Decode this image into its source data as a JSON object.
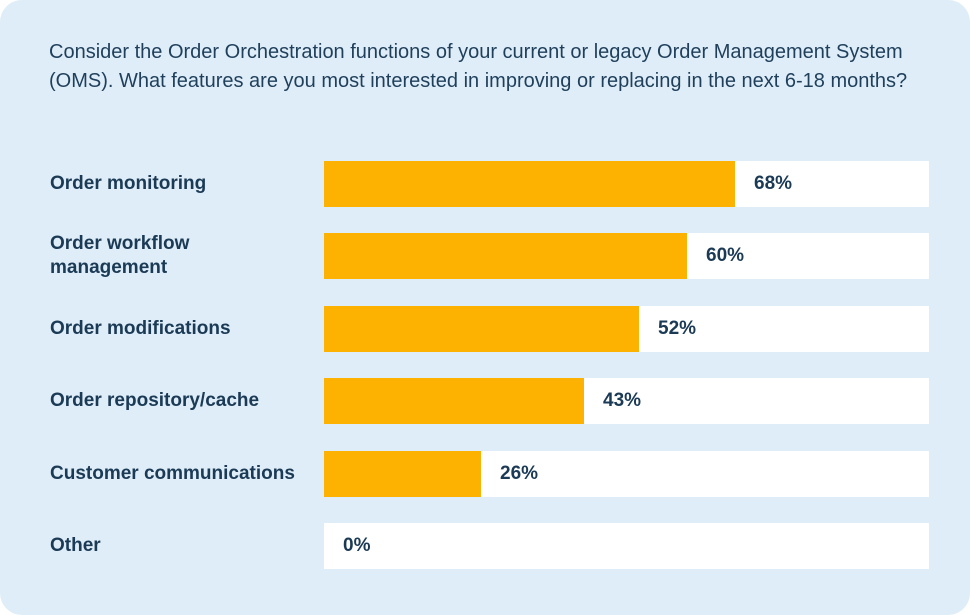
{
  "question": "Consider the Order Orchestration functions of your current or legacy Order Management System (OMS). What features are you most interested in improving or replacing in the next 6-18 months?",
  "colors": {
    "background": "#deedf7",
    "bar": "#fdb201",
    "track": "#ffffff",
    "text": "#1b3a55"
  },
  "chart_data": {
    "type": "bar",
    "orientation": "horizontal",
    "categories": [
      "Order monitoring",
      "Order workflow management",
      "Order modifications",
      "Order repository/cache",
      "Customer communications",
      "Other"
    ],
    "values": [
      68,
      60,
      52,
      43,
      26,
      0
    ],
    "value_labels": [
      "68%",
      "60%",
      "52%",
      "43%",
      "26%",
      "0%"
    ],
    "xlim": [
      0,
      100
    ],
    "grid": false
  }
}
